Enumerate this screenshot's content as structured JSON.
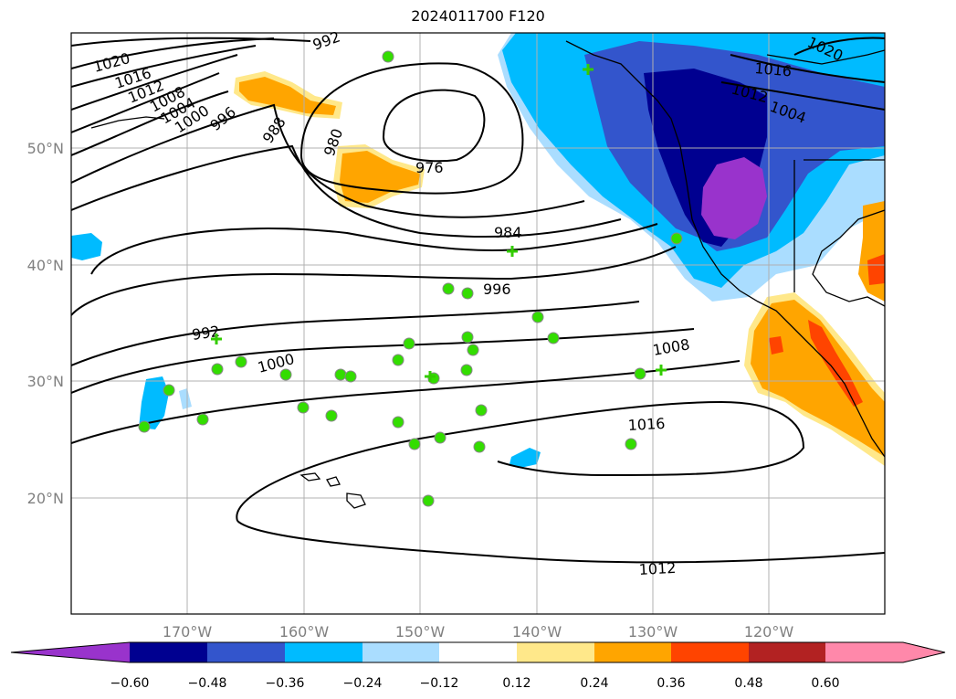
{
  "title": "2024011700 F120",
  "map": {
    "lon_labels": [
      "170°W",
      "160°W",
      "150°W",
      "140°W",
      "130°W",
      "120°W"
    ],
    "lat_labels": [
      "50°N",
      "40°N",
      "30°N",
      "20°N"
    ],
    "contour_labels": [
      "1020",
      "1016",
      "1012",
      "1008",
      "1004",
      "1000",
      "996",
      "992",
      "988",
      "980",
      "976",
      "984",
      "996",
      "992",
      "1000",
      "1008",
      "1016",
      "1012",
      "1020",
      "1016",
      "1012",
      "1004"
    ],
    "colors": {
      "purple": "#9933cc",
      "navy": "#000090",
      "blue": "#3355cc",
      "deep_sky": "#00bbff",
      "light_blue": "#aaddff",
      "white": "#ffffff",
      "light_yellow": "#ffe88a",
      "orange": "#ffa500",
      "red_orange": "#ff4400",
      "dark_red": "#b22222",
      "pink": "#ff88aa",
      "marker": "#33dd00"
    }
  },
  "colorbar": {
    "ticks": [
      "−0.60",
      "−0.48",
      "−0.36",
      "−0.24",
      "−0.12",
      "0.12",
      "0.24",
      "0.36",
      "0.48",
      "0.60"
    ]
  }
}
